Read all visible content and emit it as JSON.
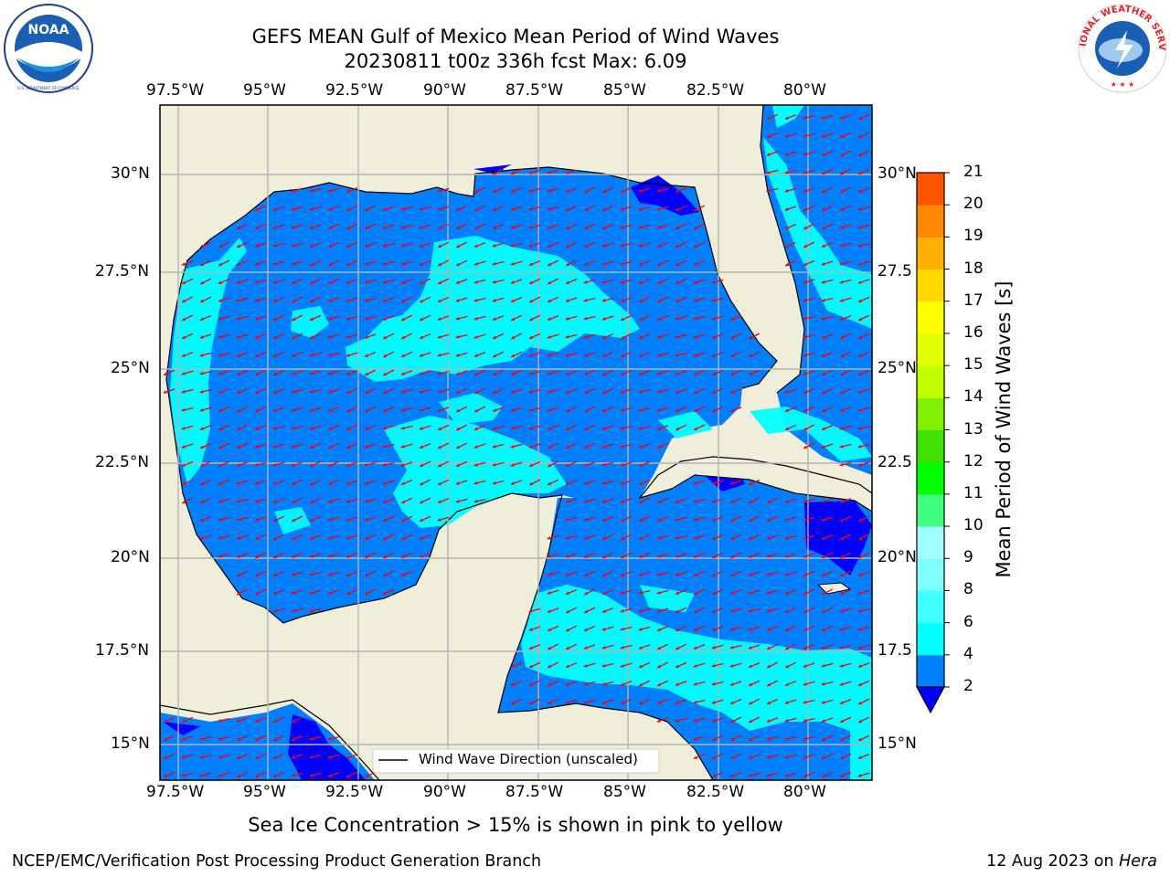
{
  "header": {
    "title_line1": "GEFS MEAN Gulf of Mexico Mean Period of Wind Waves",
    "title_line2": "20230811 t00z 336h fcst   Max: 6.09"
  },
  "logos": {
    "left": {
      "text": "NOAA",
      "ring": "NATIONAL OCEANIC AND ATMOSPHERIC ADMINISTRATION · U.S. DEPARTMENT OF COMMERCE",
      "icon": "noaa-logo"
    },
    "right": {
      "ring": "NATIONAL WEATHER SERVICE",
      "icon": "nws-logo"
    }
  },
  "map": {
    "lon_ticks": [
      "97.5°W",
      "95°W",
      "92.5°W",
      "90°W",
      "87.5°W",
      "85°W",
      "82.5°W",
      "80°W"
    ],
    "lat_ticks_left": [
      "30°N",
      "27.5°N",
      "25°N",
      "22.5°N",
      "20°N",
      "17.5°N",
      "15°N"
    ],
    "lat_ticks_right": [
      "30°N",
      "27.5",
      "25°N",
      "22.5",
      "20°N",
      "17.5",
      "15°N"
    ],
    "legend_label": "Wind Wave Direction (unscaled)",
    "colors": {
      "land": "#efeedb",
      "ocean_low": "#0080ff",
      "ocean_mid": "#00ffff",
      "ocean_min": "#0000ff",
      "arrow": "#ff0000",
      "grid": "#b4b4b4"
    }
  },
  "colorbar": {
    "label": "Mean Period of Wind Waves [s]",
    "ticks": [
      "2",
      "4",
      "6",
      "8",
      "9",
      "10",
      "11",
      "12",
      "13",
      "14",
      "15",
      "16",
      "17",
      "18",
      "19",
      "20",
      "21"
    ],
    "colors": [
      "#0080ff",
      "#00ffff",
      "#40ffff",
      "#80ffff",
      "#a0ffff",
      "#40ff80",
      "#00ff00",
      "#40e000",
      "#80f000",
      "#c0ff00",
      "#e0ff00",
      "#ffff00",
      "#ffd800",
      "#ffb000",
      "#ff8800",
      "#ff5500",
      "#ff2a00",
      "#ff0000"
    ],
    "under_color": "#0000ff"
  },
  "footer": {
    "note": "Sea Ice Concentration > 15% is shown in pink to yellow",
    "org": "NCEP/EMC/Verification Post Processing Product Generation Branch",
    "date": "12 Aug 2023 on",
    "host": "Hera"
  }
}
